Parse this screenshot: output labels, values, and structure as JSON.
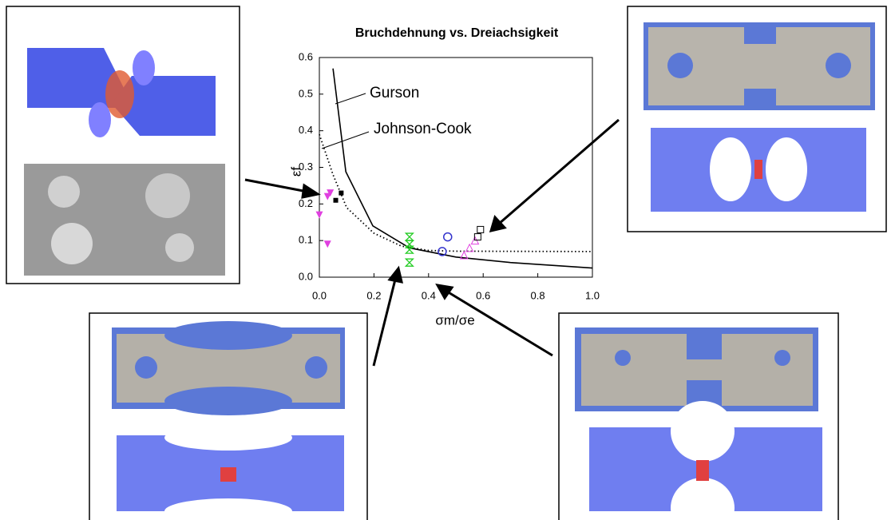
{
  "chart_data": {
    "type": "line",
    "title": "Bruchdehnung vs. Dreiachsigkeit",
    "xlabel": "σm/σe",
    "ylabel": "εf",
    "annotations": [
      "Gurson",
      "Johnson-Cook"
    ],
    "xlim": [
      0,
      1
    ],
    "ylim": [
      0,
      0.6
    ],
    "xticks": [
      {
        "value": 0,
        "label": "0.0"
      },
      {
        "value": 0.2,
        "label": "0.2"
      },
      {
        "value": 0.4,
        "label": "0.4"
      },
      {
        "value": 0.6,
        "label": "0.6"
      },
      {
        "value": 0.8,
        "label": "0.8"
      },
      {
        "value": 1,
        "label": "1.0"
      }
    ],
    "yticks": [
      {
        "value": 0,
        "label": "0.0"
      },
      0.1,
      0.2,
      0.3,
      0.4,
      0.5,
      0.6
    ],
    "series": [
      {
        "color": "#000000",
        "style": "solid",
        "x": [
          0.05,
          0.097,
          0.196,
          0.33,
          0.5,
          0.7,
          1.0
        ],
        "values": [
          0.57,
          0.288,
          0.14,
          0.08,
          0.055,
          0.04,
          0.025
        ]
      },
      {
        "color": "#000000",
        "style": "dotted",
        "x": [
          0.0,
          0.05,
          0.1,
          0.2,
          0.3,
          0.4,
          0.5,
          1.0
        ],
        "values": [
          0.39,
          0.28,
          0.19,
          0.12,
          0.085,
          0.073,
          0.071,
          0.07
        ]
      },
      {
        "color": "#e040e0",
        "marker": "triangle-down-filled",
        "x": [
          0.0,
          0.03,
          0.04,
          0.03
        ],
        "values": [
          0.17,
          0.22,
          0.23,
          0.09
        ]
      },
      {
        "color": "#000000",
        "marker": "square-filled",
        "x": [
          0.06,
          0.08
        ],
        "values": [
          0.21,
          0.23
        ]
      },
      {
        "color": "#22cc22",
        "marker": "hourglass",
        "x": [
          0.33,
          0.33,
          0.33,
          0.33
        ],
        "values": [
          0.11,
          0.09,
          0.075,
          0.04
        ]
      },
      {
        "color": "#3333cc",
        "marker": "circle-open",
        "x": [
          0.45,
          0.47
        ],
        "values": [
          0.07,
          0.11
        ]
      },
      {
        "color": "#e040e0",
        "marker": "triangle-up-open",
        "x": [
          0.53,
          0.55,
          0.57
        ],
        "values": [
          0.06,
          0.08,
          0.1
        ]
      },
      {
        "color": "#000000",
        "marker": "square-open",
        "x": [
          0.58,
          0.59
        ],
        "values": [
          0.11,
          0.13
        ]
      }
    ]
  }
}
